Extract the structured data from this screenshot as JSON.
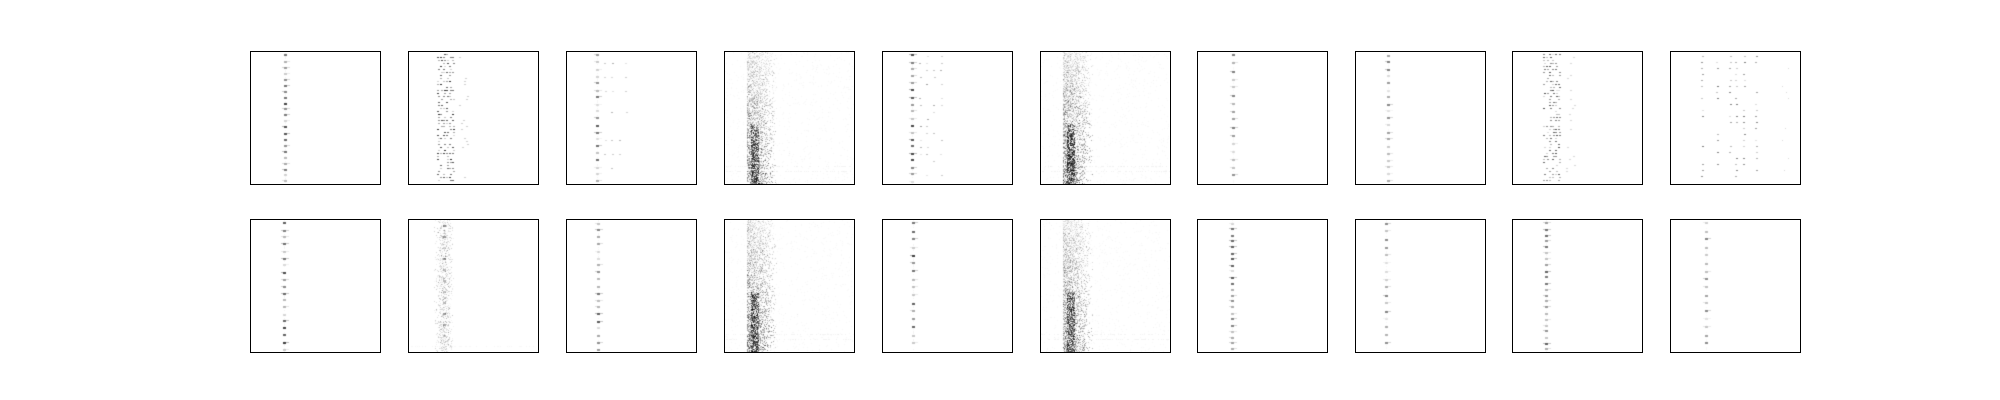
{
  "figure": {
    "rows": 2,
    "cols": 10,
    "background": "#ffffff",
    "frame_color": "#000000",
    "ink_color": "#000000"
  },
  "panels": [
    {
      "row": 0,
      "col": 0,
      "style": "single-line",
      "intensity": 0.85
    },
    {
      "row": 0,
      "col": 1,
      "style": "dense-multi",
      "intensity": 0.9
    },
    {
      "row": 0,
      "col": 2,
      "style": "multi-sparse",
      "intensity": 0.7
    },
    {
      "row": 0,
      "col": 3,
      "style": "noisy-band",
      "intensity": 0.75
    },
    {
      "row": 0,
      "col": 4,
      "style": "multi-sparse",
      "intensity": 0.8
    },
    {
      "row": 0,
      "col": 5,
      "style": "noisy-band",
      "intensity": 0.85
    },
    {
      "row": 0,
      "col": 6,
      "style": "single-line",
      "intensity": 0.6
    },
    {
      "row": 0,
      "col": 7,
      "style": "single-line",
      "intensity": 0.55
    },
    {
      "row": 0,
      "col": 8,
      "style": "dense-multi",
      "intensity": 0.75
    },
    {
      "row": 0,
      "col": 9,
      "style": "wide-multi",
      "intensity": 0.7
    },
    {
      "row": 1,
      "col": 0,
      "style": "single-line",
      "intensity": 0.85
    },
    {
      "row": 1,
      "col": 1,
      "style": "faint-band",
      "intensity": 0.6
    },
    {
      "row": 1,
      "col": 2,
      "style": "single-line",
      "intensity": 0.75
    },
    {
      "row": 1,
      "col": 3,
      "style": "noisy-band",
      "intensity": 0.8
    },
    {
      "row": 1,
      "col": 4,
      "style": "single-line",
      "intensity": 0.85
    },
    {
      "row": 1,
      "col": 5,
      "style": "noisy-band",
      "intensity": 0.75
    },
    {
      "row": 1,
      "col": 6,
      "style": "single-line",
      "intensity": 0.75
    },
    {
      "row": 1,
      "col": 7,
      "style": "single-line",
      "intensity": 0.6
    },
    {
      "row": 1,
      "col": 8,
      "style": "single-line",
      "intensity": 0.7
    },
    {
      "row": 1,
      "col": 9,
      "style": "single-line",
      "intensity": 0.55
    }
  ]
}
